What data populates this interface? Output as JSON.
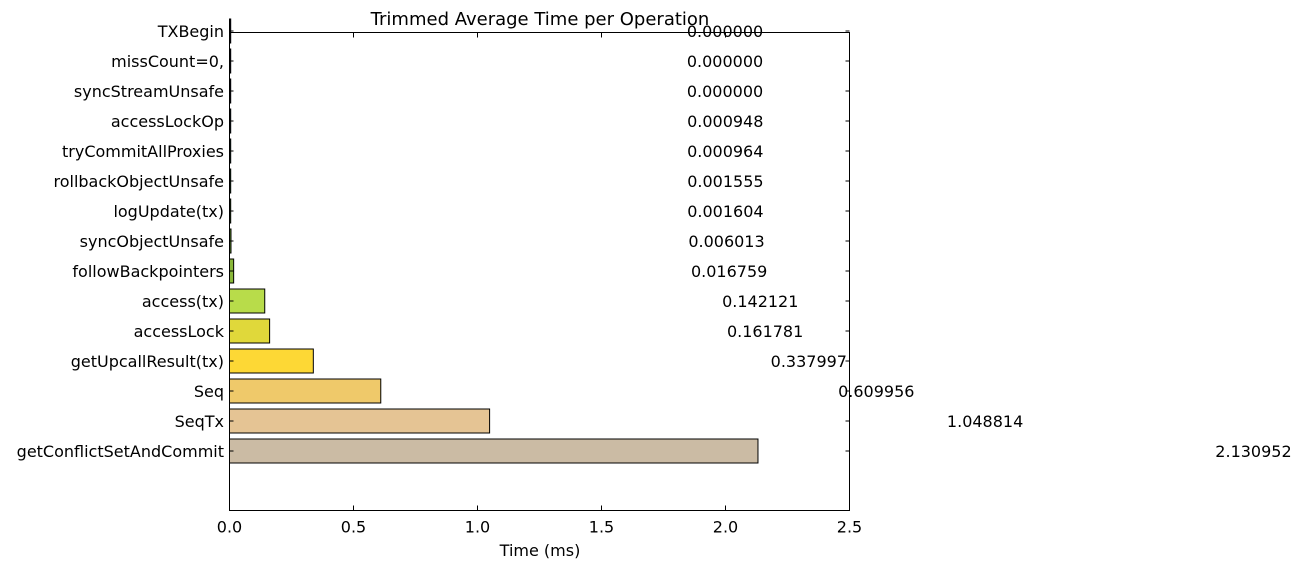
{
  "chart_data": {
    "type": "bar",
    "orientation": "horizontal",
    "title": "Trimmed Average Time per Operation",
    "xlabel": "Time (ms)",
    "ylabel": "",
    "xlim": [
      0,
      2.5
    ],
    "xticks": [
      "0.0",
      "0.5",
      "1.0",
      "1.5",
      "2.0",
      "2.5"
    ],
    "categories": [
      "TXBegin",
      "missCount=0,",
      "syncStreamUnsafe",
      "accessLockOp",
      "tryCommitAllProxies",
      "rollbackObjectUnsafe",
      "logUpdate(tx)",
      "syncObjectUnsafe",
      "followBackpointers",
      "access(tx)",
      "accessLock",
      "getUpcallResult(tx)",
      "Seq",
      "SeqTx",
      "getConflictSetAndCommit"
    ],
    "values": [
      0.0,
      0.0,
      0.0,
      0.000948,
      0.000964,
      0.001555,
      0.001604,
      0.006013,
      0.016759,
      0.142121,
      0.161781,
      0.337997,
      0.609956,
      1.048814,
      2.130952
    ],
    "value_labels": [
      "0.000000",
      "0.000000",
      "0.000000",
      "0.000948",
      "0.000964",
      "0.001555",
      "0.001604",
      "0.006013",
      "0.016759",
      "0.142121",
      "0.161781",
      "0.337997",
      "0.609956",
      "1.048814",
      "2.130952"
    ],
    "colors": [
      "#1a1a2e",
      "#1a1a2e",
      "#1a1a2e",
      "#203040",
      "#234a3a",
      "#2a5a32",
      "#3a6a2a",
      "#5a8a2a",
      "#8ab83a",
      "#b8dc4a",
      "#e0d83a",
      "#fdd835",
      "#efc96a",
      "#e5c494",
      "#cbbba4"
    ],
    "grid": false,
    "legend": "none"
  }
}
